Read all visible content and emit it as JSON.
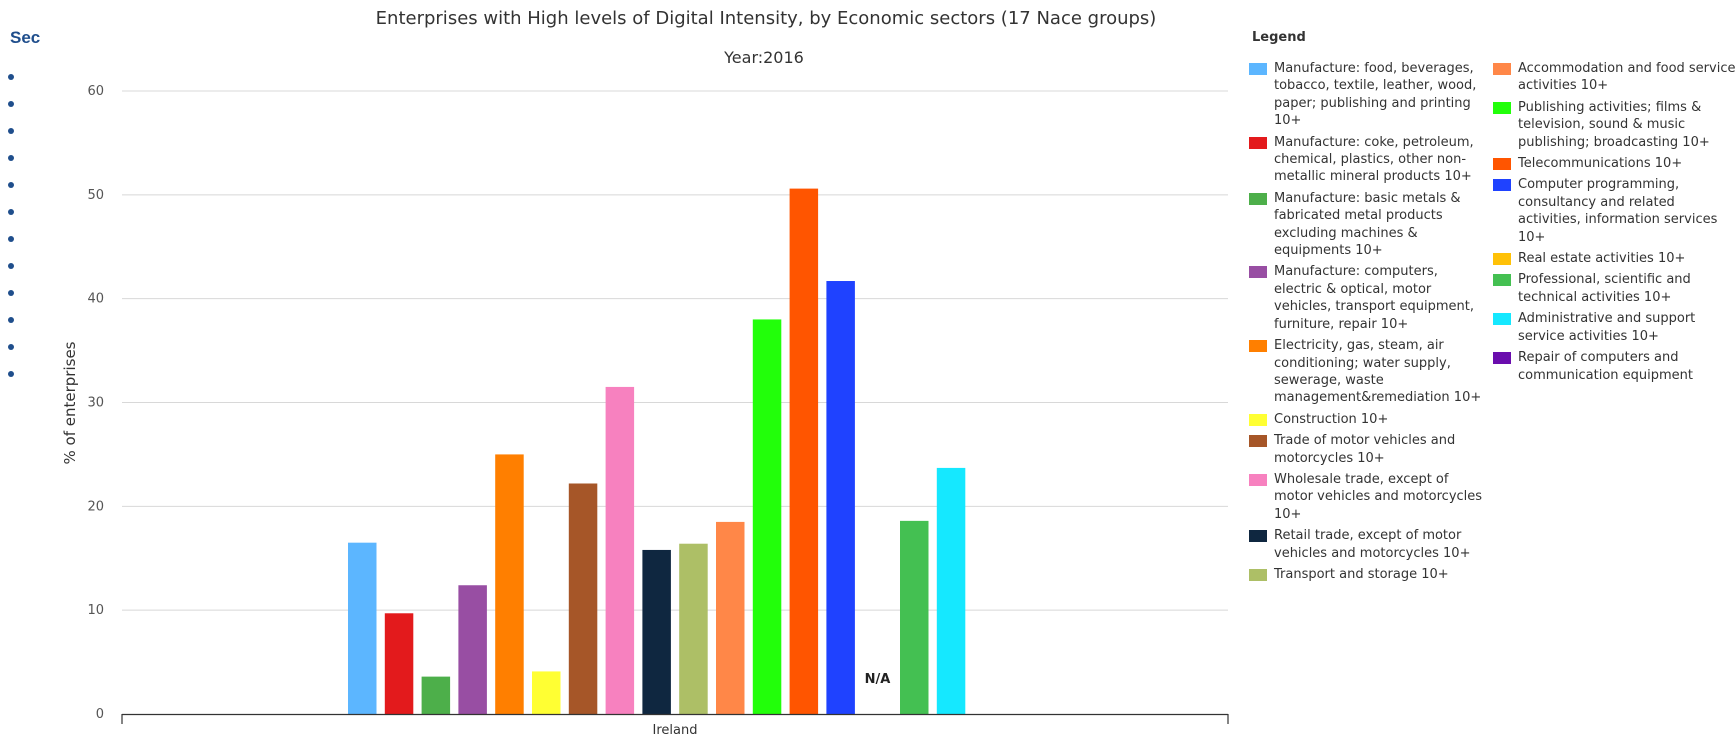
{
  "sidebar": {
    "title": "Sec",
    "bullet_count": 12
  },
  "chart_data": {
    "type": "bar",
    "title": "Enterprises with High levels of Digital Intensity, by Economic sectors (17 Nace groups)",
    "subtitle": "Year:2016",
    "xlabel": "",
    "ylabel": "% of enterprises",
    "categories": [
      "Ireland"
    ],
    "ylim": [
      0,
      60
    ],
    "yticks": [
      0,
      10,
      20,
      30,
      40,
      50,
      60
    ],
    "grid": true,
    "legend_title": "Legend",
    "legend_position": "right",
    "series": [
      {
        "name": "Manufacture: food, beverages, tobacco, textile, leather, wood, paper; publishing and printing 10+",
        "color": "#5cb6ff",
        "values": [
          16.5
        ]
      },
      {
        "name": "Manufacture: coke, petroleum, chemical, plastics, other non-metallic mineral products 10+",
        "color": "#e31a1c",
        "values": [
          9.7
        ]
      },
      {
        "name": "Manufacture: basic metals & fabricated metal products excluding machines & equipments 10+",
        "color": "#4daf4a",
        "values": [
          3.6
        ]
      },
      {
        "name": "Manufacture: computers, electric & optical, motor vehicles, transport equipment, furniture, repair 10+",
        "color": "#984ea3",
        "values": [
          12.4
        ]
      },
      {
        "name": "Electricity, gas, steam, air conditioning; water supply, sewerage, waste management&remediation 10+",
        "color": "#ff7f00",
        "values": [
          25.0
        ]
      },
      {
        "name": "Construction 10+",
        "color": "#ffff33",
        "values": [
          4.1
        ]
      },
      {
        "name": "Trade of motor vehicles and motorcycles 10+",
        "color": "#a65628",
        "values": [
          22.2
        ]
      },
      {
        "name": "Wholesale trade, except of motor vehicles and motorcycles 10+",
        "color": "#f781bf",
        "values": [
          31.5
        ]
      },
      {
        "name": "Retail trade, except of motor vehicles and motorcycles 10+",
        "color": "#0f2740",
        "values": [
          15.8
        ]
      },
      {
        "name": "Transport and storage 10+",
        "color": "#adbf66",
        "values": [
          16.4
        ]
      },
      {
        "name": "Accommodation and food service activities 10+",
        "color": "#ff8748",
        "values": [
          18.5
        ]
      },
      {
        "name": "Publishing activities; films & television, sound & music publishing; broadcasting 10+",
        "color": "#22ff0a",
        "values": [
          38.0
        ]
      },
      {
        "name": "Telecommunications 10+",
        "color": "#ff5500",
        "values": [
          50.6
        ]
      },
      {
        "name": "Computer programming, consultancy and related activities, information services 10+",
        "color": "#1f42ff",
        "values": [
          41.7
        ]
      },
      {
        "name": "Real estate activities 10+",
        "color": "#ffc107",
        "values": [
          null
        ]
      },
      {
        "name": "Professional, scientific and technical activities 10+",
        "color": "#44c052",
        "values": [
          18.6
        ]
      },
      {
        "name": "Administrative and support service activities 10+",
        "color": "#15e8ff",
        "values": [
          23.7
        ]
      },
      {
        "name": "Repair of computers and communication equipment",
        "color": "#6a0dad",
        "values": [
          null
        ]
      }
    ],
    "missing_label": "N/A"
  }
}
